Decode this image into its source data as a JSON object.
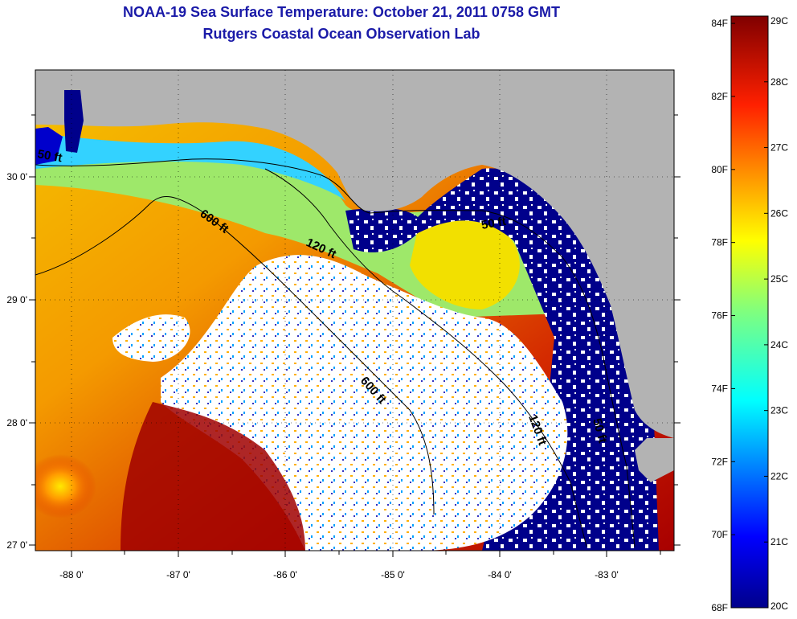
{
  "title": "NOAA-19 Sea Surface Temperature:  October 21, 2011 0758 GMT",
  "subtitle": "Rutgers Coastal Ocean Observation Lab",
  "colors": {
    "title": "#1a1aa8",
    "land": "#b3b3b3",
    "cloud": "#ffffff",
    "deep_blue": "#00008b"
  },
  "map": {
    "lon_ticks": [
      "-88 0'",
      "-87 0'",
      "-86 0'",
      "-85 0'",
      "-84 0'",
      "-83 0'"
    ],
    "lat_ticks": [
      "30 0'",
      "29 0'",
      "28 0'",
      "27 0'"
    ],
    "contours": [
      {
        "label": "50 ft"
      },
      {
        "label": "600 ft"
      },
      {
        "label": "120 ft"
      },
      {
        "label": "50 ft"
      },
      {
        "label": "600 ft"
      },
      {
        "label": "120 ft"
      },
      {
        "label": "50 ft"
      }
    ]
  },
  "colorbar": {
    "fahrenheit": [
      "84F",
      "82F",
      "80F",
      "78F",
      "76F",
      "74F",
      "72F",
      "70F",
      "68F"
    ],
    "celsius": [
      "29C",
      "28C",
      "27C",
      "26C",
      "25C",
      "24C",
      "23C",
      "22C",
      "21C",
      "20C"
    ],
    "range_c": [
      20,
      29
    ],
    "colormap": "jet"
  }
}
